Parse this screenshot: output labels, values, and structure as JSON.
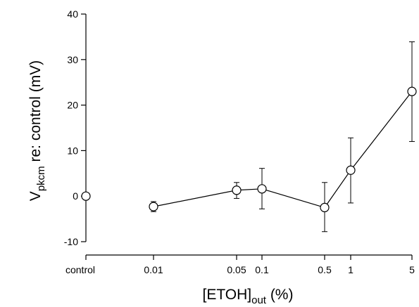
{
  "chart_data": {
    "type": "scatter",
    "categories": [
      "control",
      "0.01",
      "0.05",
      "0.1",
      "0.5",
      "1",
      "5"
    ],
    "ylim": [
      -10,
      40
    ],
    "y_ticks": [
      "-10",
      "0",
      "10",
      "20",
      "30",
      "40"
    ],
    "xlabel": {
      "main": "[ETOH]",
      "sub": "out",
      "rest": " (%)"
    },
    "ylabel": {
      "main": "V",
      "sub": "pkcm",
      "rest": " re: control (mV)"
    },
    "grid": false,
    "legend": "none",
    "series": [
      {
        "x": [
          "control",
          "0.01",
          "0.05",
          "0.1",
          "0.5",
          "1",
          "5"
        ],
        "y": [
          0,
          -2.3,
          1.3,
          1.6,
          -2.5,
          5.7,
          23
        ],
        "error_low": [
          0,
          -3.4,
          -0.5,
          -2.8,
          -7.8,
          -1.5,
          12
        ],
        "error_high": [
          0,
          -1.2,
          3,
          6.1,
          3,
          12.8,
          33.9
        ],
        "connected_from": "0.01"
      }
    ]
  }
}
